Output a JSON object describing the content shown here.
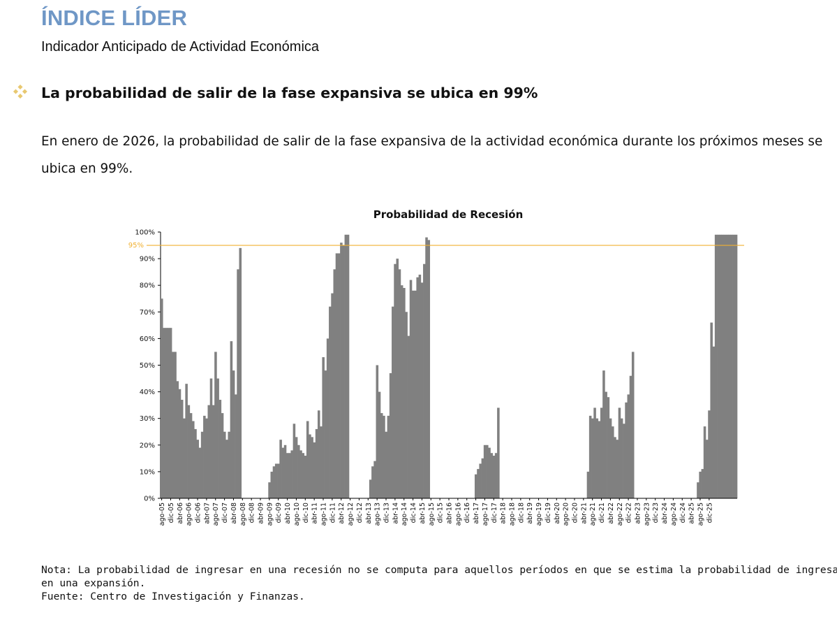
{
  "header": {
    "title": "ÍNDICE LÍDER",
    "subtitle": "Indicador Anticipado de Actividad Económica"
  },
  "headline": {
    "icon": "diamond-bullet-icon",
    "text": "La probabilidad de salir de la fase expansiva se ubica en 99%"
  },
  "paragraph": "En enero de 2026, la probabilidad de salir de la fase expansiva de la actividad económica durante los próximos meses se ubica en 99%.",
  "chart_data": {
    "type": "bar",
    "title": "Probabilidad de Recesión",
    "xlabel": "",
    "ylabel": "",
    "ylim": [
      0,
      100
    ],
    "y_ticks": [
      "0%",
      "10%",
      "20%",
      "30%",
      "40%",
      "50%",
      "60%",
      "70%",
      "80%",
      "90%",
      "100%"
    ],
    "x_start": "2005-08",
    "x_end": "2025-12",
    "grid": false,
    "bar_color": "#808080",
    "threshold": {
      "value": 95,
      "label": "95%",
      "color": "#f0b030"
    },
    "x_tick_labels": [
      "ago-05",
      "dic-05",
      "abr-06",
      "ago-06",
      "dic-06",
      "abr-07",
      "ago-07",
      "dic-07",
      "abr-08",
      "ago-08",
      "dic-08",
      "abr-09",
      "ago-09",
      "dic-09",
      "abr-10",
      "ago-10",
      "dic-10",
      "abr-11",
      "ago-11",
      "dic-11",
      "abr-12",
      "ago-12",
      "dic-12",
      "abr-13",
      "ago-13",
      "dic-13",
      "abr-14",
      "ago-14",
      "dic-14",
      "abr-15",
      "ago-15",
      "dic-15",
      "abr-16",
      "ago-16",
      "dic-16",
      "abr-17",
      "ago-17",
      "dic-17",
      "abr-18",
      "ago-18",
      "dic-18",
      "abr-19",
      "ago-19",
      "dic-19",
      "abr-20",
      "ago-20",
      "dic-20",
      "abr-21",
      "ago-21",
      "dic-21",
      "abr-22",
      "ago-22",
      "dic-22",
      "abr-23",
      "ago-23",
      "dic-23",
      "abr-24",
      "ago-24",
      "dic-24",
      "abr-25",
      "ago-25",
      "dic-25"
    ],
    "values": [
      75,
      64,
      64,
      64,
      64,
      55,
      55,
      44,
      41,
      37,
      30,
      43,
      35,
      32,
      29,
      26,
      22,
      19,
      25,
      31,
      30,
      35,
      45,
      35,
      55,
      45,
      37,
      32,
      25,
      22,
      25,
      59,
      48,
      39,
      86,
      94,
      null,
      null,
      null,
      null,
      null,
      null,
      null,
      null,
      null,
      null,
      null,
      null,
      6,
      10,
      12,
      13,
      13,
      22,
      19,
      20,
      17,
      17,
      18,
      28,
      23,
      20,
      18,
      17,
      16,
      29,
      24,
      23,
      21,
      26,
      33,
      27,
      53,
      48,
      60,
      72,
      77,
      86,
      92,
      92,
      96,
      95,
      99,
      99,
      null,
      null,
      null,
      null,
      null,
      null,
      null,
      null,
      null,
      7,
      12,
      14,
      50,
      40,
      32,
      31,
      25,
      31,
      47,
      72,
      88,
      90,
      86,
      80,
      79,
      70,
      61,
      82,
      78,
      78,
      83,
      84,
      81,
      88,
      98,
      97,
      null,
      null,
      null,
      null,
      null,
      null,
      null,
      null,
      null,
      null,
      null,
      null,
      null,
      null,
      null,
      null,
      null,
      null,
      null,
      null,
      9,
      11,
      13,
      15,
      20,
      20,
      19,
      17,
      16,
      17,
      34,
      null,
      null,
      null,
      null,
      null,
      null,
      null,
      null,
      null,
      null,
      null,
      null,
      null,
      null,
      null,
      null,
      null,
      null,
      null,
      null,
      null,
      null,
      null,
      null,
      null,
      null,
      null,
      null,
      null,
      null,
      null,
      null,
      null,
      null,
      null,
      null,
      null,
      null,
      null,
      10,
      31,
      30,
      34,
      30,
      29,
      34,
      48,
      40,
      38,
      30,
      27,
      23,
      22,
      34,
      30,
      28,
      36,
      39,
      46,
      55,
      null,
      null,
      null,
      null,
      null,
      null,
      null,
      null,
      null,
      null,
      null,
      null,
      null,
      null,
      null,
      null,
      null,
      null,
      null,
      null,
      null,
      null,
      null,
      null,
      null,
      null,
      null,
      null,
      6,
      10,
      11,
      27,
      22,
      33,
      66,
      57,
      99,
      99,
      99,
      99,
      99,
      99,
      99,
      99,
      99,
      99
    ]
  },
  "note": {
    "line1": "Nota: La probabilidad de ingresar en una recesión no se computa para aquellos períodos en que se estima la probabilidad de ingresar",
    "line2": "en una expansión.",
    "line3": "Fuente: Centro de Investigación y Finanzas."
  }
}
